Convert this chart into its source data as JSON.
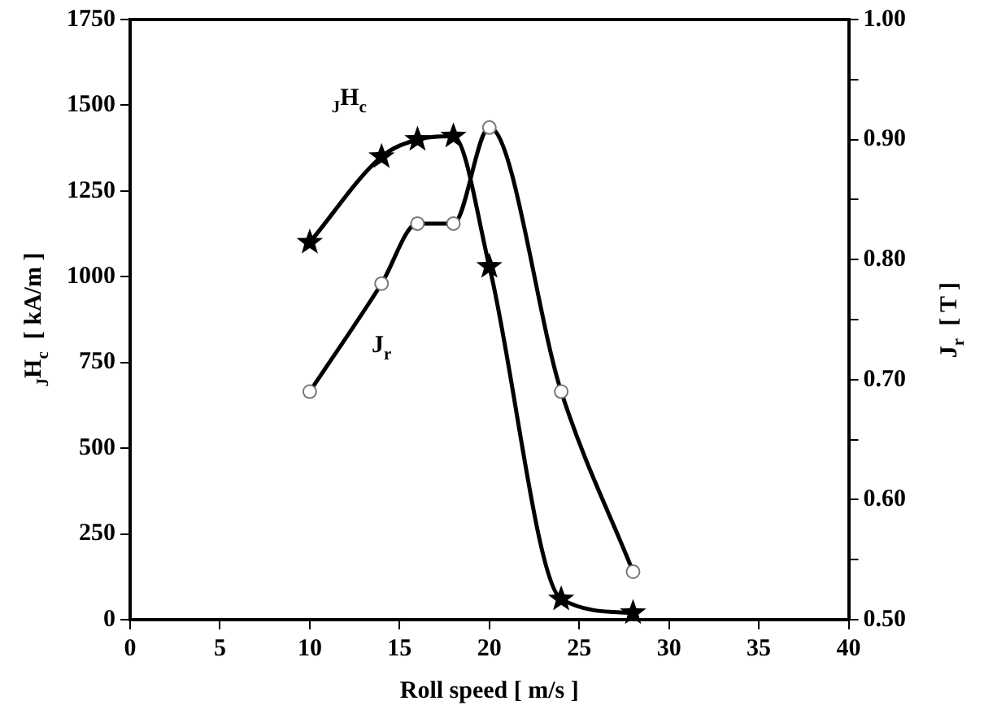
{
  "chart_data": {
    "type": "line",
    "xlabel": "Roll speed [ m/s ]",
    "ylabel": "$_{J}$H$_{c}$  [ kA/m ]",
    "y2label": "J$_{r}$  [ T ]",
    "x": [
      10,
      14,
      16,
      18,
      20,
      24,
      28
    ],
    "series": [
      {
        "name": "$_{J}$H$_{c}$",
        "color": "#000000",
        "marker": "star",
        "values": [
          1100,
          1350,
          1400,
          1410,
          1030,
          60,
          20
        ]
      },
      {
        "name": "J$_{r}$",
        "color": "#000000",
        "marker": "circle",
        "axis": "y2",
        "values": [
          0.69,
          0.78,
          0.83,
          0.83,
          0.91,
          0.69,
          0.54
        ]
      }
    ],
    "xlim": [
      0,
      40
    ],
    "xticks": [
      0,
      5,
      10,
      15,
      20,
      25,
      30,
      35,
      40
    ],
    "ylim": [
      0,
      1750
    ],
    "yticks": [
      0,
      250,
      500,
      750,
      1000,
      1250,
      1500,
      1750
    ],
    "y2lim": [
      0.5,
      1.0
    ],
    "y2ticks": [
      {
        "value": 0.5,
        "label": "0.50"
      },
      {
        "value": 0.55,
        "label": null
      },
      {
        "value": 0.6,
        "label": "0.60"
      },
      {
        "value": 0.65,
        "label": null
      },
      {
        "value": 0.7,
        "label": "0.70"
      },
      {
        "value": 0.75,
        "label": null
      },
      {
        "value": 0.8,
        "label": "0.80"
      },
      {
        "value": 0.85,
        "label": null
      },
      {
        "value": 0.9,
        "label": "0.90"
      },
      {
        "value": 0.95,
        "label": null
      },
      {
        "value": 1.0,
        "label": "1.00"
      }
    ],
    "grid": false,
    "legend": false,
    "line_style": "solid"
  }
}
